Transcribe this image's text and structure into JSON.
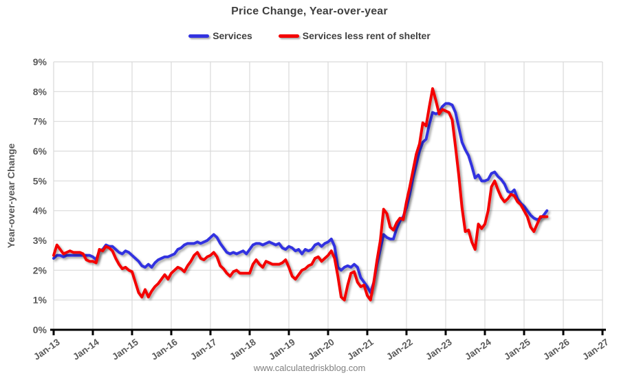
{
  "page": {
    "footer": "www.calculatedriskblog.com"
  },
  "chart_data": {
    "type": "line",
    "title": "Price Change, Year-over-year",
    "xlabel": "",
    "ylabel": "Year-over-year Change",
    "ylim": [
      0,
      9
    ],
    "y_tick_step": 1,
    "y_tick_suffix": "%",
    "grid": true,
    "legend_position": "top-center",
    "x_tick_labels": [
      "Jan-13",
      "Jan-14",
      "Jan-15",
      "Jan-16",
      "Jan-17",
      "Jan-18",
      "Jan-19",
      "Jan-20",
      "Jan-21",
      "Jan-22",
      "Jan-23",
      "Jan-24",
      "Jan-25",
      "Jan-26",
      "Jan-27"
    ],
    "x_axis_total_months": 168,
    "colors": {
      "gridline": "#d9d9d9",
      "axis": "#000000",
      "tick_label": "#595959",
      "title": "#404040",
      "footer": "#7f7f7f"
    },
    "series": [
      {
        "name": "Services",
        "color": "#3333E0",
        "start_label": "Jan-13",
        "frequency": "monthly",
        "values": [
          2.4,
          2.5,
          2.5,
          2.45,
          2.5,
          2.5,
          2.5,
          2.5,
          2.5,
          2.5,
          2.5,
          2.5,
          2.45,
          2.35,
          2.65,
          2.7,
          2.85,
          2.8,
          2.8,
          2.7,
          2.6,
          2.55,
          2.65,
          2.6,
          2.5,
          2.4,
          2.3,
          2.15,
          2.1,
          2.2,
          2.1,
          2.25,
          2.35,
          2.4,
          2.45,
          2.45,
          2.5,
          2.55,
          2.7,
          2.75,
          2.85,
          2.9,
          2.9,
          2.9,
          2.95,
          2.9,
          2.95,
          3.0,
          3.1,
          3.2,
          3.1,
          2.9,
          2.75,
          2.6,
          2.55,
          2.6,
          2.55,
          2.6,
          2.65,
          2.55,
          2.7,
          2.85,
          2.9,
          2.9,
          2.85,
          2.9,
          2.95,
          2.9,
          2.85,
          2.9,
          2.75,
          2.7,
          2.8,
          2.75,
          2.65,
          2.7,
          2.55,
          2.7,
          2.65,
          2.7,
          2.85,
          2.9,
          2.8,
          2.9,
          2.95,
          3.05,
          2.8,
          2.1,
          2.0,
          2.1,
          2.15,
          2.1,
          2.2,
          2.1,
          1.75,
          1.6,
          1.45,
          1.25,
          1.6,
          2.2,
          2.7,
          3.2,
          3.1,
          3.05,
          3.05,
          3.4,
          3.65,
          3.8,
          4.1,
          4.55,
          5.1,
          5.55,
          6.0,
          6.3,
          6.4,
          6.9,
          7.3,
          7.25,
          7.3,
          7.5,
          7.6,
          7.6,
          7.55,
          7.3,
          6.8,
          6.3,
          6.05,
          5.85,
          5.5,
          5.1,
          5.2,
          5.0,
          5.0,
          5.05,
          5.25,
          5.3,
          5.15,
          5.05,
          4.9,
          4.65,
          4.6,
          4.7,
          4.4,
          4.25,
          4.15,
          4.0,
          3.85,
          3.75,
          3.7,
          3.75,
          3.85,
          4.0
        ]
      },
      {
        "name": "Services less rent of shelter",
        "color": "#F40000",
        "start_label": "Jan-13",
        "frequency": "monthly",
        "values": [
          2.5,
          2.85,
          2.7,
          2.55,
          2.6,
          2.65,
          2.6,
          2.6,
          2.6,
          2.55,
          2.35,
          2.3,
          2.3,
          2.25,
          2.7,
          2.65,
          2.8,
          2.75,
          2.65,
          2.4,
          2.2,
          2.05,
          2.1,
          2.0,
          1.95,
          1.6,
          1.25,
          1.1,
          1.35,
          1.1,
          1.3,
          1.45,
          1.55,
          1.7,
          1.85,
          1.7,
          1.9,
          2.0,
          2.1,
          2.05,
          1.95,
          2.15,
          2.3,
          2.5,
          2.6,
          2.4,
          2.35,
          2.45,
          2.5,
          2.6,
          2.45,
          2.15,
          2.05,
          1.9,
          1.8,
          1.95,
          2.0,
          1.9,
          1.9,
          1.9,
          1.9,
          2.2,
          2.35,
          2.2,
          2.1,
          2.3,
          2.25,
          2.2,
          2.2,
          2.2,
          2.25,
          2.35,
          2.1,
          1.8,
          1.7,
          1.85,
          2.0,
          2.05,
          2.15,
          2.2,
          2.4,
          2.45,
          2.3,
          2.4,
          2.5,
          2.65,
          2.4,
          1.8,
          1.1,
          1.0,
          1.5,
          1.9,
          1.95,
          1.6,
          1.45,
          1.5,
          1.15,
          1.0,
          1.6,
          2.35,
          3.0,
          4.05,
          3.9,
          3.45,
          3.35,
          3.6,
          3.75,
          3.7,
          4.3,
          4.8,
          5.35,
          5.9,
          6.25,
          6.95,
          6.85,
          7.5,
          8.1,
          7.7,
          7.25,
          7.4,
          7.35,
          7.3,
          7.05,
          6.15,
          5.2,
          4.1,
          3.3,
          3.35,
          2.95,
          2.7,
          3.55,
          3.4,
          3.55,
          4.0,
          4.8,
          5.0,
          4.7,
          4.45,
          4.3,
          4.4,
          4.55,
          4.5,
          4.3,
          4.2,
          4.0,
          3.8,
          3.45,
          3.3,
          3.55,
          3.8,
          3.8,
          3.8
        ]
      }
    ]
  }
}
